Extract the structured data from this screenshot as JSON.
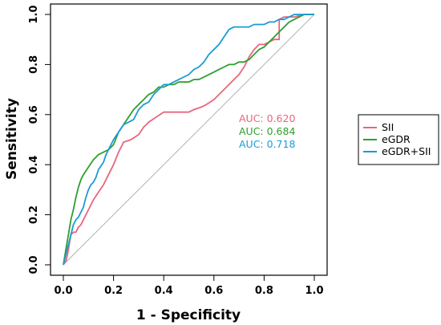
{
  "chart_data": {
    "type": "line",
    "xlabel": "1 - Specificity",
    "ylabel": "Sensitivity",
    "xlim": [
      0,
      1
    ],
    "ylim": [
      0,
      1
    ],
    "x_ticks": [
      "0.0",
      "0.2",
      "0.4",
      "0.6",
      "0.8",
      "1.0"
    ],
    "y_ticks": [
      "0.0",
      "0.2",
      "0.4",
      "0.6",
      "0.8",
      "1.0"
    ],
    "grid": false,
    "legend_position": "right",
    "reference_line": {
      "from": [
        0,
        0
      ],
      "to": [
        1,
        1
      ],
      "color": "#b0b0b0"
    },
    "series": [
      {
        "name": "SII",
        "color": "#e8667c",
        "auc_label": "AUC: 0.620",
        "points": [
          [
            0,
            0
          ],
          [
            0.012,
            0.02
          ],
          [
            0.02,
            0.06
          ],
          [
            0.025,
            0.09
          ],
          [
            0.03,
            0.12
          ],
          [
            0.04,
            0.13
          ],
          [
            0.05,
            0.13
          ],
          [
            0.06,
            0.15
          ],
          [
            0.07,
            0.16
          ],
          [
            0.08,
            0.18
          ],
          [
            0.09,
            0.2
          ],
          [
            0.1,
            0.22
          ],
          [
            0.12,
            0.26
          ],
          [
            0.14,
            0.29
          ],
          [
            0.16,
            0.32
          ],
          [
            0.18,
            0.36
          ],
          [
            0.2,
            0.4
          ],
          [
            0.22,
            0.45
          ],
          [
            0.24,
            0.49
          ],
          [
            0.27,
            0.5
          ],
          [
            0.3,
            0.52
          ],
          [
            0.32,
            0.55
          ],
          [
            0.34,
            0.57
          ],
          [
            0.37,
            0.59
          ],
          [
            0.4,
            0.61
          ],
          [
            0.45,
            0.61
          ],
          [
            0.5,
            0.61
          ],
          [
            0.52,
            0.62
          ],
          [
            0.55,
            0.63
          ],
          [
            0.57,
            0.64
          ],
          [
            0.6,
            0.66
          ],
          [
            0.63,
            0.69
          ],
          [
            0.66,
            0.72
          ],
          [
            0.68,
            0.74
          ],
          [
            0.7,
            0.76
          ],
          [
            0.72,
            0.79
          ],
          [
            0.74,
            0.83
          ],
          [
            0.76,
            0.86
          ],
          [
            0.78,
            0.88
          ],
          [
            0.8,
            0.88
          ],
          [
            0.82,
            0.89
          ],
          [
            0.84,
            0.9
          ],
          [
            0.86,
            0.9
          ],
          [
            0.86,
            0.98
          ],
          [
            0.88,
            0.99
          ],
          [
            0.92,
            0.99
          ],
          [
            0.96,
            1.0
          ],
          [
            1.0,
            1.0
          ]
        ]
      },
      {
        "name": "eGDR",
        "color": "#2e9e2e",
        "auc_label": "AUC: 0.684",
        "points": [
          [
            0,
            0
          ],
          [
            0.01,
            0.06
          ],
          [
            0.02,
            0.12
          ],
          [
            0.03,
            0.18
          ],
          [
            0.04,
            0.22
          ],
          [
            0.05,
            0.27
          ],
          [
            0.06,
            0.31
          ],
          [
            0.07,
            0.34
          ],
          [
            0.08,
            0.36
          ],
          [
            0.1,
            0.39
          ],
          [
            0.12,
            0.42
          ],
          [
            0.14,
            0.44
          ],
          [
            0.16,
            0.45
          ],
          [
            0.18,
            0.46
          ],
          [
            0.2,
            0.48
          ],
          [
            0.22,
            0.53
          ],
          [
            0.24,
            0.56
          ],
          [
            0.26,
            0.59
          ],
          [
            0.28,
            0.62
          ],
          [
            0.3,
            0.64
          ],
          [
            0.32,
            0.66
          ],
          [
            0.34,
            0.68
          ],
          [
            0.36,
            0.69
          ],
          [
            0.38,
            0.71
          ],
          [
            0.4,
            0.71
          ],
          [
            0.42,
            0.72
          ],
          [
            0.44,
            0.72
          ],
          [
            0.46,
            0.73
          ],
          [
            0.48,
            0.73
          ],
          [
            0.5,
            0.73
          ],
          [
            0.52,
            0.74
          ],
          [
            0.54,
            0.74
          ],
          [
            0.56,
            0.75
          ],
          [
            0.58,
            0.76
          ],
          [
            0.6,
            0.77
          ],
          [
            0.62,
            0.78
          ],
          [
            0.64,
            0.79
          ],
          [
            0.66,
            0.8
          ],
          [
            0.68,
            0.8
          ],
          [
            0.7,
            0.81
          ],
          [
            0.72,
            0.81
          ],
          [
            0.74,
            0.82
          ],
          [
            0.76,
            0.84
          ],
          [
            0.78,
            0.86
          ],
          [
            0.8,
            0.87
          ],
          [
            0.82,
            0.89
          ],
          [
            0.84,
            0.91
          ],
          [
            0.86,
            0.93
          ],
          [
            0.88,
            0.95
          ],
          [
            0.9,
            0.97
          ],
          [
            0.92,
            0.98
          ],
          [
            0.94,
            0.99
          ],
          [
            0.96,
            1.0
          ],
          [
            1.0,
            1.0
          ]
        ]
      },
      {
        "name": "eGDR+SII",
        "color": "#1a9bd7",
        "auc_label": "AUC: 0.718",
        "points": [
          [
            0,
            0
          ],
          [
            0.01,
            0.04
          ],
          [
            0.02,
            0.08
          ],
          [
            0.03,
            0.12
          ],
          [
            0.04,
            0.16
          ],
          [
            0.05,
            0.18
          ],
          [
            0.06,
            0.19
          ],
          [
            0.07,
            0.21
          ],
          [
            0.08,
            0.23
          ],
          [
            0.09,
            0.27
          ],
          [
            0.1,
            0.3
          ],
          [
            0.11,
            0.32
          ],
          [
            0.12,
            0.33
          ],
          [
            0.13,
            0.35
          ],
          [
            0.14,
            0.38
          ],
          [
            0.16,
            0.41
          ],
          [
            0.17,
            0.44
          ],
          [
            0.18,
            0.46
          ],
          [
            0.2,
            0.5
          ],
          [
            0.22,
            0.53
          ],
          [
            0.24,
            0.56
          ],
          [
            0.26,
            0.57
          ],
          [
            0.28,
            0.58
          ],
          [
            0.3,
            0.62
          ],
          [
            0.32,
            0.64
          ],
          [
            0.34,
            0.65
          ],
          [
            0.36,
            0.68
          ],
          [
            0.38,
            0.7
          ],
          [
            0.4,
            0.72
          ],
          [
            0.42,
            0.72
          ],
          [
            0.44,
            0.73
          ],
          [
            0.46,
            0.74
          ],
          [
            0.48,
            0.75
          ],
          [
            0.5,
            0.76
          ],
          [
            0.52,
            0.78
          ],
          [
            0.54,
            0.79
          ],
          [
            0.56,
            0.81
          ],
          [
            0.58,
            0.84
          ],
          [
            0.6,
            0.86
          ],
          [
            0.62,
            0.88
          ],
          [
            0.64,
            0.91
          ],
          [
            0.66,
            0.94
          ],
          [
            0.68,
            0.95
          ],
          [
            0.7,
            0.95
          ],
          [
            0.72,
            0.95
          ],
          [
            0.74,
            0.95
          ],
          [
            0.76,
            0.96
          ],
          [
            0.78,
            0.96
          ],
          [
            0.8,
            0.96
          ],
          [
            0.82,
            0.97
          ],
          [
            0.84,
            0.97
          ],
          [
            0.86,
            0.98
          ],
          [
            0.88,
            0.98
          ],
          [
            0.9,
            0.99
          ],
          [
            0.92,
            1.0
          ],
          [
            1.0,
            1.0
          ]
        ]
      }
    ]
  }
}
